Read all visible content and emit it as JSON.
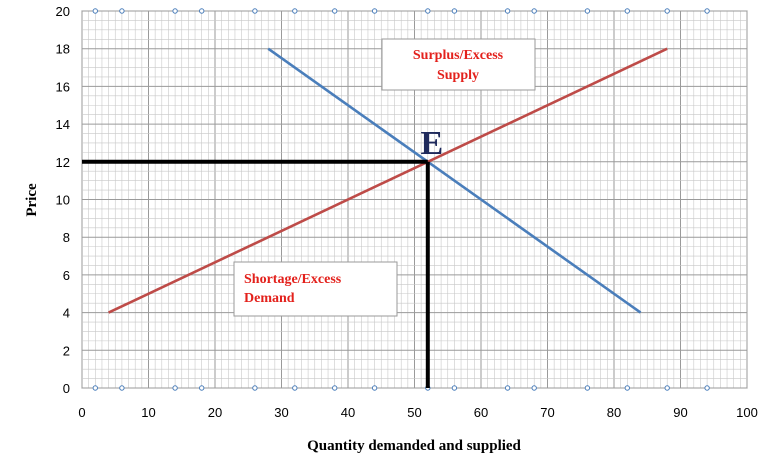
{
  "chart_data": {
    "type": "line",
    "xlabel": "Quantity demanded and supplied",
    "ylabel": "Price",
    "xlim": [
      0,
      100
    ],
    "ylim": [
      0,
      20
    ],
    "x_ticks": [
      0,
      10,
      20,
      30,
      40,
      50,
      60,
      70,
      80,
      90,
      100
    ],
    "y_ticks": [
      0,
      2,
      4,
      6,
      8,
      10,
      12,
      14,
      16,
      18,
      20
    ],
    "grid": true,
    "series": [
      {
        "key": "demand",
        "color": "#4a7ebb",
        "points": [
          [
            28,
            18
          ],
          [
            84,
            4
          ]
        ]
      },
      {
        "key": "supply",
        "color": "#be4b48",
        "points": [
          [
            4,
            4
          ],
          [
            88,
            18
          ]
        ]
      }
    ],
    "equilibrium": {
      "label": "E",
      "x": 52,
      "y": 12
    },
    "annotations": [
      {
        "key": "surplus",
        "lines": [
          "Surplus/Excess",
          "Supply"
        ]
      },
      {
        "key": "shortage",
        "lines": [
          "Shortage/Excess",
          "Demand"
        ]
      }
    ],
    "edge_markers_x": [
      2,
      6,
      14,
      18,
      26,
      32,
      38,
      44,
      52,
      56,
      64,
      68,
      76,
      82,
      88,
      94
    ]
  }
}
